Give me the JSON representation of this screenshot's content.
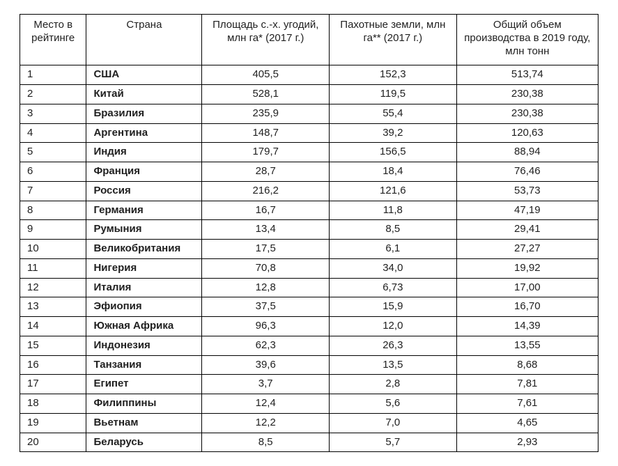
{
  "table": {
    "type": "table",
    "background_color": "#ffffff",
    "border_color": "#000000",
    "text_color": "#212121",
    "font_family": "Arial",
    "header_fontsize": 15,
    "body_fontsize": 15,
    "columns": [
      {
        "key": "rank",
        "label": "Место в рейтинге",
        "align": "left",
        "width_pct": 11.5
      },
      {
        "key": "country",
        "label": "Страна",
        "align": "left",
        "width_pct": 20,
        "bold": true
      },
      {
        "key": "agr_land",
        "label": "Площадь с.-х. угодий, млн га* (2017 г.)",
        "align": "center",
        "width_pct": 22
      },
      {
        "key": "arable_land",
        "label": "Пахотные земли, млн га** (2017 г.)",
        "align": "center",
        "width_pct": 22
      },
      {
        "key": "production",
        "label": "Общий объем производства в 2019 году, млн тонн",
        "align": "center",
        "width_pct": 24.5
      }
    ],
    "rows": [
      {
        "rank": "1",
        "country": "США",
        "agr_land": "405,5",
        "arable_land": "152,3",
        "production": "513,74"
      },
      {
        "rank": "2",
        "country": "Китай",
        "agr_land": "528,1",
        "arable_land": "119,5",
        "production": "230,38"
      },
      {
        "rank": "3",
        "country": "Бразилия",
        "agr_land": "235,9",
        "arable_land": "55,4",
        "production": "230,38"
      },
      {
        "rank": "4",
        "country": "Аргентина",
        "agr_land": "148,7",
        "arable_land": "39,2",
        "production": "120,63"
      },
      {
        "rank": "5",
        "country": "Индия",
        "agr_land": "179,7",
        "arable_land": "156,5",
        "production": "88,94"
      },
      {
        "rank": "6",
        "country": "Франция",
        "agr_land": "28,7",
        "arable_land": "18,4",
        "production": "76,46"
      },
      {
        "rank": "7",
        "country": "Россия",
        "agr_land": "216,2",
        "arable_land": "121,6",
        "production": "53,73"
      },
      {
        "rank": "8",
        "country": "Германия",
        "agr_land": "16,7",
        "arable_land": "11,8",
        "production": "47,19"
      },
      {
        "rank": "9",
        "country": "Румыния",
        "agr_land": "13,4",
        "arable_land": "8,5",
        "production": "29,41"
      },
      {
        "rank": "10",
        "country": "Великобритания",
        "agr_land": "17,5",
        "arable_land": "6,1",
        "production": "27,27"
      },
      {
        "rank": "11",
        "country": "Нигерия",
        "agr_land": "70,8",
        "arable_land": "34,0",
        "production": "19,92"
      },
      {
        "rank": "12",
        "country": "Италия",
        "agr_land": "12,8",
        "arable_land": "6,73",
        "production": "17,00"
      },
      {
        "rank": "13",
        "country": "Эфиопия",
        "agr_land": "37,5",
        "arable_land": "15,9",
        "production": "16,70"
      },
      {
        "rank": "14",
        "country": "Южная Африка",
        "agr_land": "96,3",
        "arable_land": "12,0",
        "production": "14,39"
      },
      {
        "rank": "15",
        "country": "Индонезия",
        "agr_land": "62,3",
        "arable_land": "26,3",
        "production": "13,55"
      },
      {
        "rank": "16",
        "country": "Танзания",
        "agr_land": "39,6",
        "arable_land": "13,5",
        "production": "8,68"
      },
      {
        "rank": "17",
        "country": "Египет",
        "agr_land": "3,7",
        "arable_land": "2,8",
        "production": "7,81"
      },
      {
        "rank": "18",
        "country": "Филиппины",
        "agr_land": "12,4",
        "arable_land": "5,6",
        "production": "7,61"
      },
      {
        "rank": "19",
        "country": "Вьетнам",
        "agr_land": "12,2",
        "arable_land": "7,0",
        "production": "4,65"
      },
      {
        "rank": "20",
        "country": "Беларусь",
        "agr_land": "8,5",
        "arable_land": "5,7",
        "production": "2,93"
      }
    ]
  }
}
